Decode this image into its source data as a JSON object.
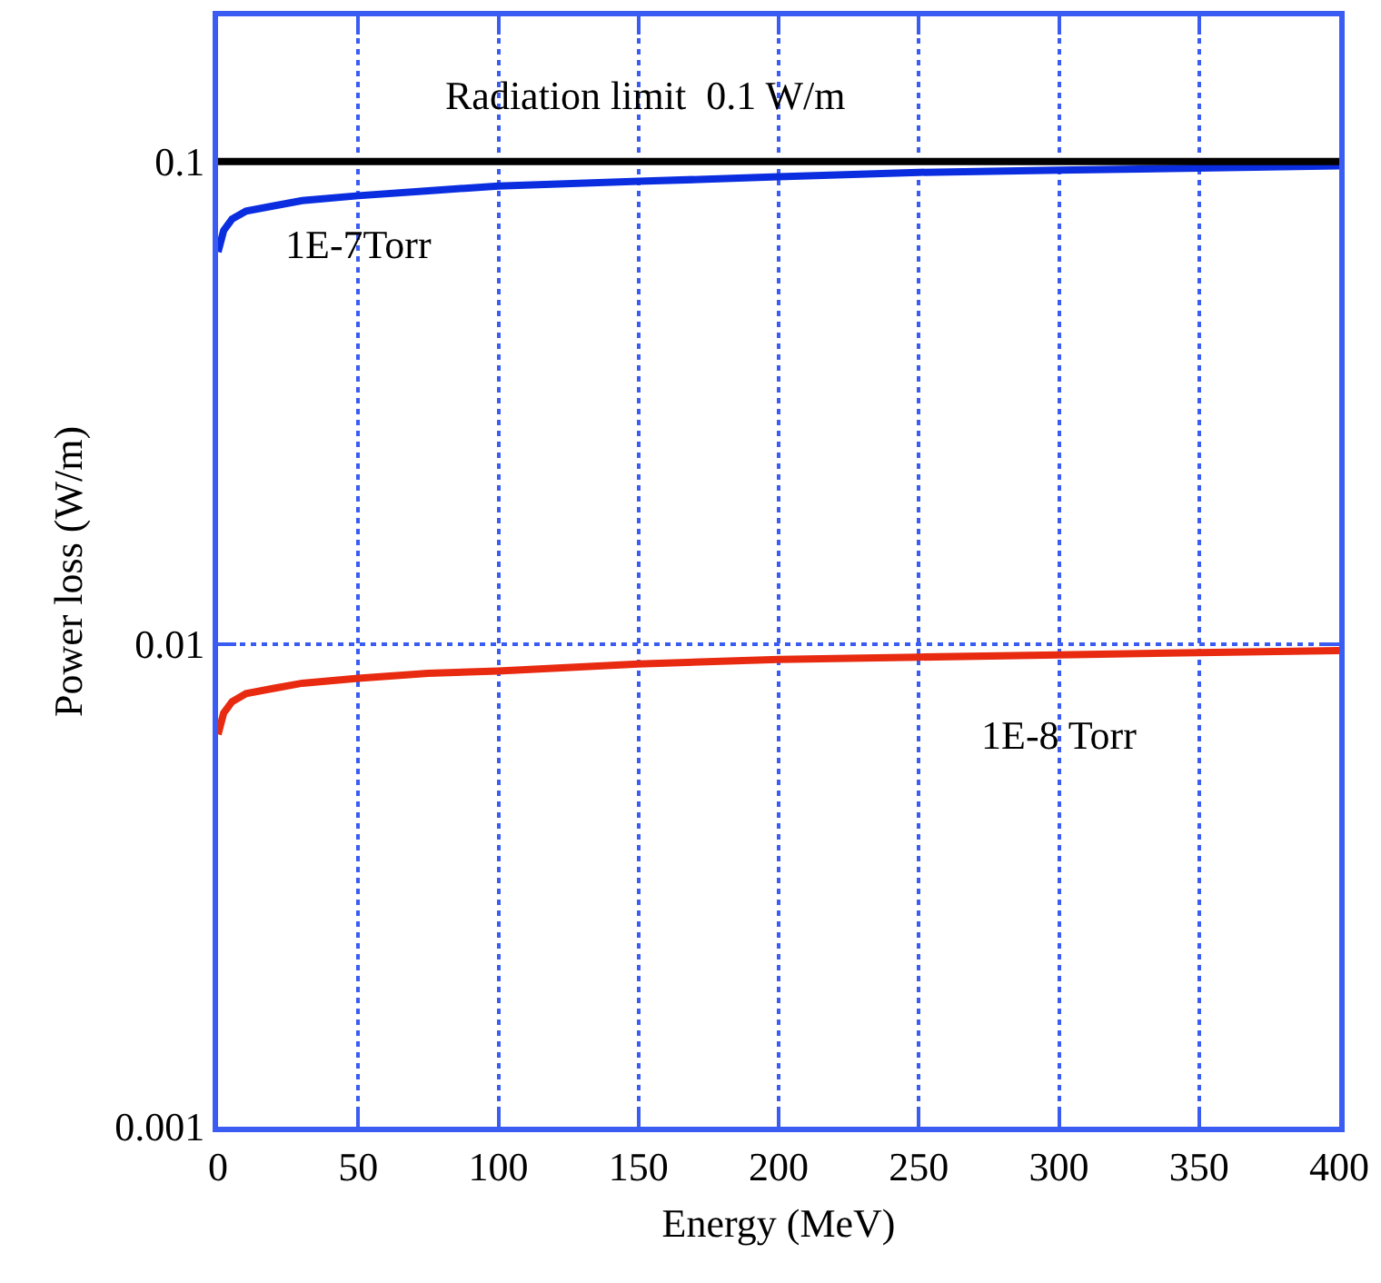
{
  "chart_data": {
    "type": "line",
    "xlabel": "Energy (MeV)",
    "ylabel": "Power loss (W/m)",
    "x": [
      0,
      2,
      5,
      10,
      20,
      30,
      50,
      75,
      100,
      150,
      200,
      250,
      300,
      350,
      400
    ],
    "series": [
      {
        "name": "1E-7Torr",
        "color": "#0a2de0",
        "values": [
          0.065,
          0.072,
          0.076,
          0.079,
          0.081,
          0.083,
          0.085,
          0.087,
          0.089,
          0.091,
          0.093,
          0.095,
          0.096,
          0.097,
          0.098
        ]
      },
      {
        "name": "1E-8 Torr",
        "color": "#e82a10",
        "values": [
          0.0065,
          0.0072,
          0.0076,
          0.0079,
          0.0081,
          0.0083,
          0.0085,
          0.0087,
          0.0088,
          0.0091,
          0.0093,
          0.0094,
          0.0095,
          0.0096,
          0.0097
        ]
      }
    ],
    "ref_lines": [
      {
        "axis": "y",
        "value": 0.1,
        "label": "Radiation limit  0.1 W/m",
        "color": "#000000"
      }
    ],
    "xlim": [
      0,
      400
    ],
    "xticks": [
      0,
      50,
      100,
      150,
      200,
      250,
      300,
      350,
      400
    ],
    "ylim": [
      0.001,
      0.2
    ],
    "yticks": [
      0.001,
      0.01,
      0.1
    ],
    "log": "y",
    "grid": true,
    "legend": false,
    "marker": "none",
    "line_style": "solid"
  }
}
